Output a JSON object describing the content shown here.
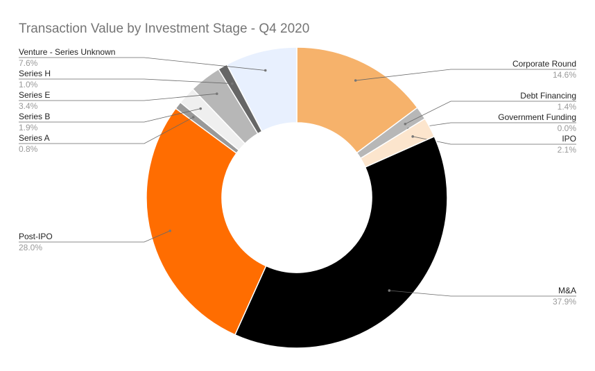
{
  "chart_data": {
    "type": "donut",
    "title": "Transaction Value by Investment Stage - Q4 2020",
    "categories": [
      "Corporate Round",
      "Debt Financing",
      "Government Funding",
      "IPO",
      "M&A",
      "Post-IPO",
      "Series A",
      "Series B",
      "Series E",
      "Series H",
      "Venture - Series Unknown"
    ],
    "values": [
      14.6,
      1.4,
      0.0,
      2.1,
      37.9,
      28.0,
      0.8,
      1.9,
      3.4,
      1.0,
      7.6
    ],
    "value_labels": [
      "14.6%",
      "1.4%",
      "0.0%",
      "2.1%",
      "37.9%",
      "28.0%",
      "0.8%",
      "1.9%",
      "3.4%",
      "1.0%",
      "7.6%"
    ],
    "colors": [
      "#f6b26b",
      "#b7b7b7",
      "#f4cccc",
      "#fce5cd",
      "#000000",
      "#ff6d01",
      "#999999",
      "#efefef",
      "#b7b7b7",
      "#666666",
      "#e8f0fe"
    ]
  }
}
